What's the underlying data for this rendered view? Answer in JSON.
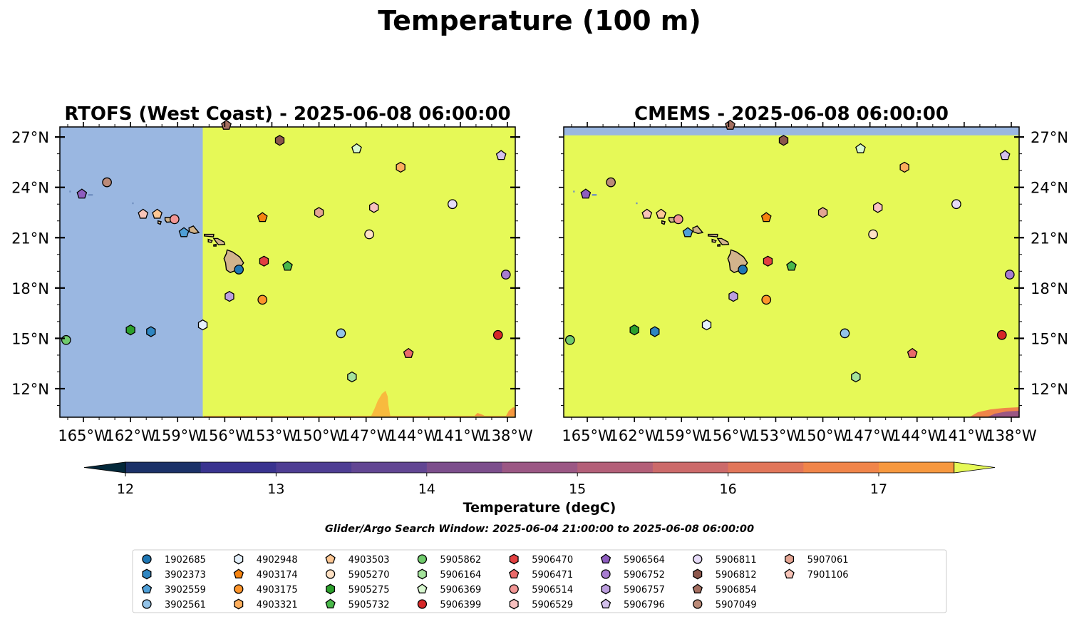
{
  "figure": {
    "title": "Temperature (100 m)",
    "search_window": "Glider/Argo Search Window: 2025-06-04 21:00:00 to 2025-06-08 06:00:00"
  },
  "colors": {
    "land": "#d2b48c",
    "ocean": "#9ab7e1",
    "field_max": "#e6f957"
  },
  "colorbar": {
    "label": "Temperature (degC)",
    "ticks": [
      12,
      13,
      14,
      15,
      16,
      17
    ],
    "range": [
      11.5,
      17.5
    ],
    "step": 0.5,
    "extend": "both",
    "bin_colors": [
      "#03283a",
      "#1b3168",
      "#39338f",
      "#4e3d93",
      "#624693",
      "#7c4e8c",
      "#9b5784",
      "#b35f78",
      "#cc6a6a",
      "#e1765a",
      "#f0854a",
      "#f6983f",
      "#f8ba3e"
    ],
    "over_color": "#e6f957",
    "under_color": "#03283a"
  },
  "chart_data": [
    {
      "type": "map",
      "title": "RTOFS (West Coast) - 2025-06-08 06:00:00",
      "xlim": [
        -166.5,
        -137.5
      ],
      "ylim": [
        10.3,
        27.6
      ],
      "model_coverage_lon": [
        -157.4,
        -137.5
      ],
      "model_coverage_lat": [
        10.3,
        27.6
      ],
      "x_ticks": [
        "165°W",
        "162°W",
        "159°W",
        "156°W",
        "153°W",
        "150°W",
        "147°W",
        "144°W",
        "141°W",
        "138°W"
      ],
      "y_ticks": [
        "12°N",
        "15°N",
        "18°N",
        "21°N",
        "24°N",
        "27°N"
      ],
      "y_axis_side": "left"
    },
    {
      "type": "map",
      "title": "CMEMS - 2025-06-08 06:00:00",
      "xlim": [
        -166.5,
        -137.5
      ],
      "ylim": [
        10.3,
        27.6
      ],
      "model_coverage_lon": [
        -166.5,
        -137.5
      ],
      "model_coverage_lat": [
        10.3,
        27.1
      ],
      "x_ticks": [
        "165°W",
        "162°W",
        "159°W",
        "156°W",
        "153°W",
        "150°W",
        "147°W",
        "144°W",
        "141°W",
        "138°W"
      ],
      "y_ticks": [
        "12°N",
        "15°N",
        "18°N",
        "21°N",
        "24°N",
        "27°N"
      ],
      "y_axis_side": "right"
    }
  ],
  "platforms": [
    {
      "id": "1902685",
      "marker": "circle",
      "color": "#1f77b4",
      "lon": -155.1,
      "lat": 19.1
    },
    {
      "id": "3902373",
      "marker": "hexagon",
      "color": "#2f86c2",
      "lon": -160.7,
      "lat": 15.4
    },
    {
      "id": "3902559",
      "marker": "pentagon",
      "color": "#4f9fd7",
      "lon": -158.6,
      "lat": 21.3
    },
    {
      "id": "3902561",
      "marker": "circle",
      "color": "#93c3e8",
      "lon": -148.6,
      "lat": 15.3
    },
    {
      "id": "4902948",
      "marker": "hexagon",
      "color": "#e4f0fb",
      "lon": -157.4,
      "lat": 15.8
    },
    {
      "id": "4903174",
      "marker": "pentagon",
      "color": "#f5830f",
      "lon": -153.6,
      "lat": 22.2
    },
    {
      "id": "4903175",
      "marker": "circle",
      "color": "#fd952b",
      "lon": -153.6,
      "lat": 17.3
    },
    {
      "id": "4903321",
      "marker": "hexagon",
      "color": "#fdae5c",
      "lon": -144.8,
      "lat": 25.2
    },
    {
      "id": "4903503",
      "marker": "pentagon",
      "color": "#fdc794",
      "lon": -160.3,
      "lat": 22.4
    },
    {
      "id": "5905270",
      "marker": "circle",
      "color": "#fee1c4",
      "lon": -146.8,
      "lat": 21.2
    },
    {
      "id": "5905275",
      "marker": "hexagon",
      "color": "#2ca02c",
      "lon": -162.0,
      "lat": 15.5
    },
    {
      "id": "5905732",
      "marker": "pentagon",
      "color": "#49b84a",
      "lon": -152.0,
      "lat": 19.3
    },
    {
      "id": "5905862",
      "marker": "circle",
      "color": "#70cb6c",
      "lon": -166.1,
      "lat": 14.9
    },
    {
      "id": "5906164",
      "marker": "hexagon",
      "color": "#a4e39b",
      "lon": -147.9,
      "lat": 12.7
    },
    {
      "id": "5906369",
      "marker": "pentagon",
      "color": "#d8f8d0",
      "lon": -147.6,
      "lat": 26.3
    },
    {
      "id": "5906399",
      "marker": "circle",
      "color": "#d62728",
      "lon": -138.6,
      "lat": 15.2
    },
    {
      "id": "5906470",
      "marker": "hexagon",
      "color": "#e34041",
      "lon": -153.5,
      "lat": 19.6
    },
    {
      "id": "5906471",
      "marker": "pentagon",
      "color": "#ea6a6a",
      "lon": -144.3,
      "lat": 14.1
    },
    {
      "id": "5906514",
      "marker": "circle",
      "color": "#f29695",
      "lon": -159.2,
      "lat": 22.1
    },
    {
      "id": "5906529",
      "marker": "hexagon",
      "color": "#f8c1c0",
      "lon": -146.5,
      "lat": 22.8
    },
    {
      "id": "5906564",
      "marker": "pentagon",
      "color": "#8e5dbf",
      "lon": -165.1,
      "lat": 23.6
    },
    {
      "id": "5906752",
      "marker": "circle",
      "color": "#a77cd0",
      "lon": -138.1,
      "lat": 18.8
    },
    {
      "id": "5906757",
      "marker": "hexagon",
      "color": "#bc9ede",
      "lon": -155.7,
      "lat": 17.5
    },
    {
      "id": "5906796",
      "marker": "pentagon",
      "color": "#d3c0ec",
      "lon": -138.4,
      "lat": 25.9
    },
    {
      "id": "5906811",
      "marker": "circle",
      "color": "#e6dbf8",
      "lon": -141.5,
      "lat": 23.0
    },
    {
      "id": "5906812",
      "marker": "hexagon",
      "color": "#8c564b",
      "lon": -152.5,
      "lat": 26.8
    },
    {
      "id": "5906854",
      "marker": "pentagon",
      "color": "#a46f61",
      "lon": -155.9,
      "lat": 27.7
    },
    {
      "id": "5907049",
      "marker": "circle",
      "color": "#bb8a78",
      "lon": -163.5,
      "lat": 24.3
    },
    {
      "id": "5907061",
      "marker": "hexagon",
      "color": "#e4a593",
      "lon": -150.0,
      "lat": 22.5
    },
    {
      "id": "7901106",
      "marker": "pentagon",
      "color": "#f8c4b8",
      "lon": -161.2,
      "lat": 22.4
    }
  ]
}
